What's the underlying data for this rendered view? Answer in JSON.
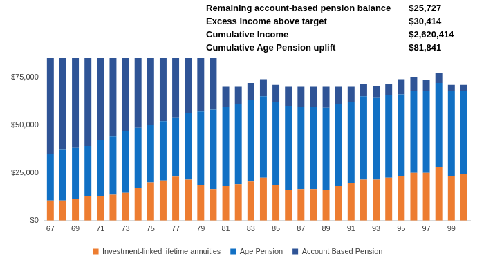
{
  "chart_data": {
    "type": "bar",
    "stacked": true,
    "grid": false,
    "legend": "bottom",
    "categories": [
      "67",
      null,
      "69",
      null,
      "71",
      null,
      "73",
      null,
      "75",
      null,
      "77",
      null,
      "79",
      null,
      "81",
      null,
      "83",
      null,
      "85",
      null,
      "87",
      null,
      "89",
      null,
      "91",
      null,
      "93",
      null,
      "95",
      null,
      "97",
      null,
      "99",
      null
    ],
    "series": [
      {
        "name": "Investment-linked lifetime annuities",
        "color": "#ed7d31",
        "values": [
          10500,
          10500,
          11500,
          13000,
          13000,
          13500,
          14500,
          17000,
          20000,
          21000,
          23000,
          21500,
          18500,
          16500,
          18000,
          19000,
          20500,
          22500,
          18500,
          16000,
          16500,
          16500,
          16000,
          18000,
          19500,
          21500,
          21500,
          22500,
          23500,
          25000,
          25000,
          28000,
          23500,
          24500
        ]
      },
      {
        "name": "Age Pension",
        "color": "#1170c4",
        "values": [
          24500,
          26500,
          26500,
          26000,
          29000,
          30500,
          32500,
          31500,
          30000,
          31000,
          31000,
          34500,
          38500,
          41500,
          41500,
          42000,
          42500,
          42500,
          43500,
          44000,
          43000,
          43000,
          43000,
          43000,
          42500,
          43500,
          43000,
          43000,
          42500,
          43000,
          43000,
          44000,
          44500,
          43500
        ]
      },
      {
        "name": "Account Based Pension",
        "color": "#2f5496",
        "values": [
          50000,
          48000,
          47000,
          46000,
          43000,
          41000,
          38000,
          36500,
          35000,
          33000,
          31000,
          29000,
          28000,
          27000,
          10500,
          9000,
          9000,
          9000,
          9000,
          10000,
          10500,
          10500,
          11000,
          9000,
          8000,
          6500,
          6000,
          6000,
          8000,
          7000,
          5500,
          5000,
          3000,
          3000
        ]
      }
    ],
    "ylim": [
      0,
      85000
    ],
    "yticks": [
      {
        "value": 0,
        "label": "$0"
      },
      {
        "value": 25000,
        "label": "$25,000"
      },
      {
        "value": 50000,
        "label": "$50,000"
      },
      {
        "value": 75000,
        "label": "$75,000"
      }
    ],
    "annotations": [
      {
        "label": "Remaining account-based pension balance",
        "value": "$25,727"
      },
      {
        "label": "Excess income above target",
        "value": "$30,414"
      },
      {
        "label": "Cumulative Income",
        "value": "$2,620,414"
      },
      {
        "label": "Cumulative Age Pension uplift",
        "value": "$81,841"
      }
    ]
  }
}
